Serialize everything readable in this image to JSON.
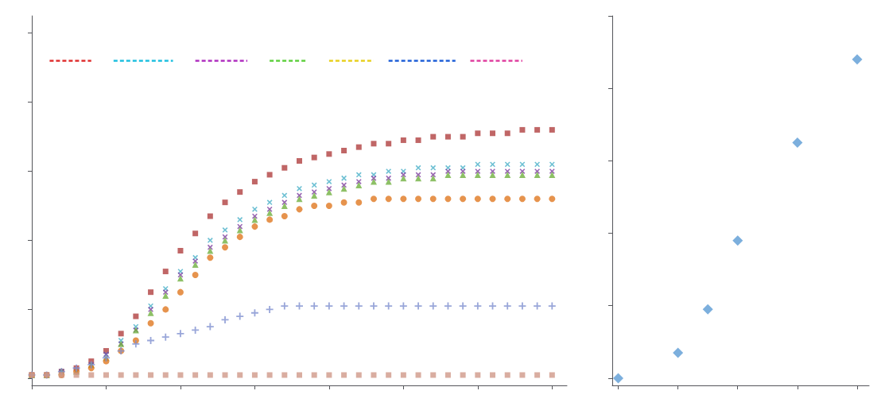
{
  "chart_data": [
    {
      "type": "scatter",
      "x": [
        0,
        1,
        2,
        3,
        4,
        5,
        6,
        7,
        8,
        9,
        10,
        11,
        12,
        13,
        14,
        15,
        16,
        17,
        18,
        19,
        20,
        21,
        22,
        23,
        24,
        25,
        26,
        27,
        28,
        29,
        30,
        31,
        32,
        33,
        34,
        35
      ],
      "series": [
        {
          "color": "#b04040",
          "marker": "square",
          "values": [
            0.01,
            0.01,
            0.02,
            0.03,
            0.05,
            0.08,
            0.13,
            0.18,
            0.25,
            0.31,
            0.37,
            0.42,
            0.47,
            0.51,
            0.54,
            0.57,
            0.59,
            0.61,
            0.63,
            0.64,
            0.65,
            0.66,
            0.67,
            0.68,
            0.68,
            0.69,
            0.69,
            0.7,
            0.7,
            0.7,
            0.71,
            0.71,
            0.71,
            0.72,
            0.72,
            0.72
          ]
        },
        {
          "color": "#4ab0c8",
          "marker": "x",
          "values": [
            0.01,
            0.01,
            0.02,
            0.02,
            0.04,
            0.07,
            0.11,
            0.15,
            0.21,
            0.26,
            0.31,
            0.35,
            0.4,
            0.43,
            0.46,
            0.49,
            0.51,
            0.53,
            0.55,
            0.56,
            0.57,
            0.58,
            0.59,
            0.59,
            0.6,
            0.6,
            0.61,
            0.61,
            0.61,
            0.61,
            0.62,
            0.62,
            0.62,
            0.62,
            0.62,
            0.62
          ]
        },
        {
          "color": "#8040a0",
          "marker": "x",
          "values": [
            0.01,
            0.01,
            0.02,
            0.02,
            0.04,
            0.07,
            0.1,
            0.14,
            0.2,
            0.25,
            0.3,
            0.34,
            0.38,
            0.41,
            0.44,
            0.47,
            0.49,
            0.51,
            0.53,
            0.54,
            0.55,
            0.56,
            0.57,
            0.58,
            0.58,
            0.59,
            0.59,
            0.59,
            0.6,
            0.6,
            0.6,
            0.6,
            0.6,
            0.6,
            0.6,
            0.6
          ]
        },
        {
          "color": "#70b040",
          "marker": "triangle",
          "values": [
            0.01,
            0.01,
            0.02,
            0.02,
            0.04,
            0.06,
            0.1,
            0.14,
            0.19,
            0.24,
            0.29,
            0.33,
            0.37,
            0.4,
            0.43,
            0.46,
            0.48,
            0.5,
            0.52,
            0.53,
            0.54,
            0.55,
            0.56,
            0.57,
            0.57,
            0.58,
            0.58,
            0.58,
            0.59,
            0.59,
            0.59,
            0.59,
            0.59,
            0.59,
            0.59,
            0.59
          ]
        },
        {
          "color": "#e07820",
          "marker": "circle",
          "values": [
            0.01,
            0.01,
            0.01,
            0.02,
            0.03,
            0.05,
            0.08,
            0.11,
            0.16,
            0.2,
            0.25,
            0.3,
            0.35,
            0.38,
            0.41,
            0.44,
            0.46,
            0.47,
            0.49,
            0.5,
            0.5,
            0.51,
            0.51,
            0.52,
            0.52,
            0.52,
            0.52,
            0.52,
            0.52,
            0.52,
            0.52,
            0.52,
            0.52,
            0.52,
            0.52,
            0.52
          ]
        },
        {
          "color": "#8090d0",
          "marker": "plus",
          "values": [
            0.01,
            0.01,
            0.02,
            0.03,
            0.04,
            0.06,
            0.08,
            0.1,
            0.11,
            0.12,
            0.13,
            0.14,
            0.15,
            0.17,
            0.18,
            0.19,
            0.2,
            0.21,
            0.21,
            0.21,
            0.21,
            0.21,
            0.21,
            0.21,
            0.21,
            0.21,
            0.21,
            0.21,
            0.21,
            0.21,
            0.21,
            0.21,
            0.21,
            0.21,
            0.21,
            0.21
          ]
        },
        {
          "color": "#d09888",
          "marker": "square",
          "values": [
            0.01,
            0.01,
            0.01,
            0.01,
            0.01,
            0.01,
            0.01,
            0.01,
            0.01,
            0.01,
            0.01,
            0.01,
            0.01,
            0.01,
            0.01,
            0.01,
            0.01,
            0.01,
            0.01,
            0.01,
            0.01,
            0.01,
            0.01,
            0.01,
            0.01,
            0.01,
            0.01,
            0.01,
            0.01,
            0.01,
            0.01,
            0.01,
            0.01,
            0.01,
            0.01,
            0.01
          ]
        },
        {
          "type": "line",
          "line_style": "dashed",
          "color": "#e03030",
          "x": [
            1.2,
            4.0
          ],
          "values": [
            0.92,
            0.92
          ]
        },
        {
          "type": "line",
          "line_style": "dashed",
          "color": "#20c0e0",
          "x": [
            5.5,
            9.5
          ],
          "values": [
            0.92,
            0.92
          ]
        },
        {
          "type": "line",
          "line_style": "dashed",
          "color": "#b030c0",
          "x": [
            11.0,
            14.5
          ],
          "values": [
            0.92,
            0.92
          ]
        },
        {
          "type": "line",
          "line_style": "dashed",
          "color": "#60d040",
          "x": [
            16.0,
            18.5
          ],
          "values": [
            0.92,
            0.92
          ]
        },
        {
          "type": "line",
          "line_style": "dashed",
          "color": "#e8d020",
          "x": [
            20.0,
            23.0
          ],
          "values": [
            0.92,
            0.92
          ]
        },
        {
          "type": "line",
          "line_style": "dashed",
          "color": "#2060d8",
          "x": [
            24.0,
            28.5
          ],
          "values": [
            0.92,
            0.92
          ]
        },
        {
          "type": "line",
          "line_style": "dashed",
          "color": "#e040a0",
          "x": [
            29.5,
            33.0
          ],
          "values": [
            0.92,
            0.92
          ]
        }
      ],
      "xlim": [
        0,
        36
      ],
      "ylim": [
        -0.02,
        1.05
      ],
      "xticks": [
        0,
        5,
        10,
        15,
        20,
        25,
        30,
        35
      ],
      "yticks": [
        0.0,
        0.2,
        0.4,
        0.6,
        0.8,
        1.0
      ],
      "grid": false,
      "tick_labels": false
    },
    {
      "type": "scatter",
      "x": [
        0.0,
        0.5,
        0.75,
        1.0,
        1.5,
        2.0
      ],
      "values": [
        0.0,
        0.07,
        0.19,
        0.38,
        0.65,
        0.88
      ],
      "color": "#5b9bd5",
      "marker": "diamond",
      "xlim": [
        -0.05,
        2.1
      ],
      "ylim": [
        -0.02,
        1.0
      ],
      "xticks": [
        0.0,
        0.5,
        1.0,
        1.5,
        2.0
      ],
      "yticks": [
        0.0,
        0.2,
        0.4,
        0.6,
        0.8,
        1.0
      ],
      "grid": false,
      "tick_labels": false
    }
  ]
}
